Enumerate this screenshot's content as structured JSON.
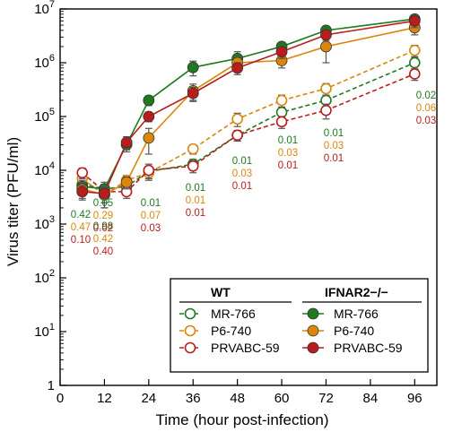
{
  "chart_data": {
    "type": "line",
    "xlabel": "Time (hour post-infection)",
    "ylabel": "Virus titer (PFU/ml)",
    "xlim": [
      0,
      102
    ],
    "xticks": [
      0,
      12,
      24,
      36,
      48,
      60,
      72,
      84,
      96
    ],
    "ylim": [
      1,
      10000000
    ],
    "yscale": "log",
    "yticks": [
      {
        "value": 1,
        "base": "1",
        "exp": ""
      },
      {
        "value": 10,
        "base": "10",
        "exp": "1"
      },
      {
        "value": 100,
        "base": "10",
        "exp": "2"
      },
      {
        "value": 1000,
        "base": "10",
        "exp": "3"
      },
      {
        "value": 10000,
        "base": "10",
        "exp": "4"
      },
      {
        "value": 100000,
        "base": "10",
        "exp": "5"
      },
      {
        "value": 1000000,
        "base": "10",
        "exp": "6"
      },
      {
        "value": 10000000,
        "base": "10",
        "exp": "7"
      }
    ],
    "x": [
      6,
      12,
      18,
      24,
      36,
      48,
      60,
      72,
      96
    ],
    "series": [
      {
        "name": "MR-766",
        "group": "WT",
        "color": "#1e7a1e",
        "style": "dashed",
        "marker": "open",
        "values": [
          5500,
          4500,
          5000,
          9500,
          13000,
          45000,
          120000,
          200000,
          1000000
        ],
        "err": [
          1500,
          1000,
          1000,
          2500,
          3000,
          10000,
          30000,
          50000,
          250000
        ]
      },
      {
        "name": "P6-740",
        "group": "WT",
        "color": "#d9860b",
        "style": "dashed",
        "marker": "open",
        "values": [
          7000,
          3500,
          6500,
          9000,
          25000,
          90000,
          200000,
          330000,
          1700000
        ],
        "err": [
          2000,
          1500,
          1500,
          2500,
          5000,
          25000,
          50000,
          80000,
          400000
        ]
      },
      {
        "name": "PRVABC-59",
        "group": "WT",
        "color": "#b81c1c",
        "style": "dashed",
        "marker": "open",
        "values": [
          9000,
          4000,
          4000,
          10000,
          12000,
          45000,
          80000,
          130000,
          620000
        ],
        "err": [
          2000,
          1500,
          1000,
          3000,
          3000,
          10000,
          20000,
          40000,
          150000
        ]
      },
      {
        "name": "MR-766",
        "group": "IFNAR2−/−",
        "color": "#1e7a1e",
        "style": "solid",
        "marker": "filled",
        "values": [
          5000,
          4500,
          30000,
          200000,
          820000,
          1200000,
          2000000,
          4000000,
          6500000
        ],
        "err": [
          1500,
          1500,
          8000,
          40000,
          250000,
          400000,
          400000,
          700000,
          1200000
        ]
      },
      {
        "name": "P6-740",
        "group": "IFNAR2−/−",
        "color": "#d9860b",
        "style": "solid",
        "marker": "filled",
        "values": [
          4500,
          3500,
          6000,
          40000,
          300000,
          1000000,
          1100000,
          2000000,
          4500000
        ],
        "err": [
          1500,
          1500,
          1500,
          20000,
          100000,
          300000,
          300000,
          1000000,
          1200000
        ]
      },
      {
        "name": "PRVABC-59",
        "group": "IFNAR2−/−",
        "color": "#b81c1c",
        "style": "solid",
        "marker": "filled",
        "values": [
          4000,
          3700,
          33000,
          100000,
          270000,
          800000,
          1600000,
          3300000,
          6000000
        ],
        "err": [
          1200,
          1200,
          9000,
          20000,
          80000,
          200000,
          400000,
          700000,
          1500000
        ]
      }
    ],
    "pvalues": [
      {
        "x": 6,
        "values": [
          "0.42",
          "0.47",
          "0.10"
        ]
      },
      {
        "x": 12,
        "values": [
          "0.98",
          "0.42",
          "0.40"
        ]
      },
      {
        "x": 18,
        "values": [
          "0.05",
          "0.29",
          "0.02"
        ]
      },
      {
        "x": 24,
        "values": [
          "0.01",
          "0.07",
          "0.03"
        ]
      },
      {
        "x": 36,
        "values": [
          "0.01",
          "0.01",
          "0.01"
        ]
      },
      {
        "x": 48,
        "values": [
          "0.01",
          "0.03",
          "0.01"
        ]
      },
      {
        "x": 60,
        "values": [
          "0.01",
          "0.03",
          "0.01"
        ]
      },
      {
        "x": 72,
        "values": [
          "0.01",
          "0.03",
          "0.01"
        ]
      },
      {
        "x": 96,
        "values": [
          "0.02",
          "0.06",
          "0.03"
        ]
      }
    ],
    "legend": {
      "placement": "bottom-right",
      "group_wt": "WT",
      "group_ko": "IFNAR2−/−"
    }
  }
}
